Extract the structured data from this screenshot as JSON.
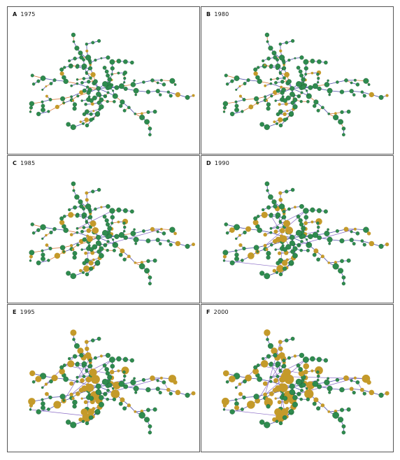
{
  "figure": {
    "panels": [
      {
        "letter": "A",
        "year": "1975"
      },
      {
        "letter": "B",
        "year": "1980"
      },
      {
        "letter": "C",
        "year": "1985"
      },
      {
        "letter": "D",
        "year": "1990"
      },
      {
        "letter": "E",
        "year": "1995"
      },
      {
        "letter": "F",
        "year": "2000"
      }
    ]
  },
  "colors": {
    "node_green": "#2e8b4e",
    "node_gold": "#c49a2a",
    "edge_blue": "#4f4fa8",
    "edge_orange": "#d87a3a",
    "edge_purple": "#8a6cc6",
    "border": "#555555"
  }
}
